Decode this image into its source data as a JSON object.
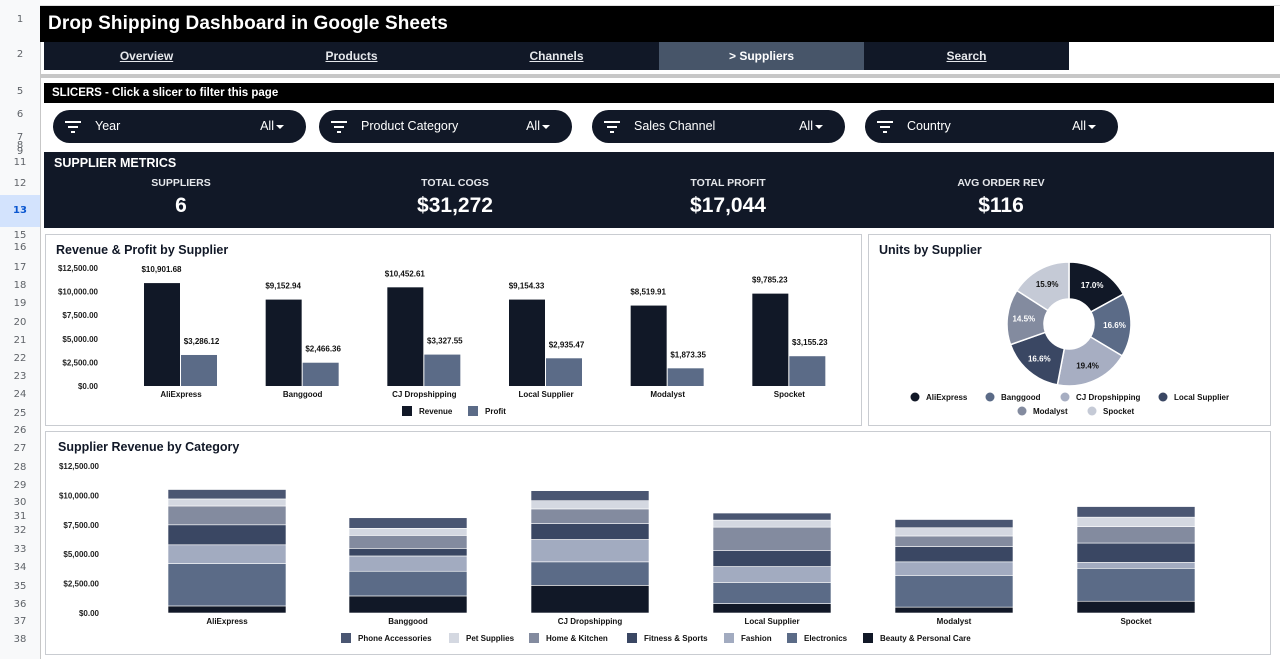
{
  "sheet": {
    "row_numbers": [
      "1",
      "2",
      "5",
      "6",
      "7",
      "8",
      "9",
      "11",
      "12",
      "13",
      "15",
      "16",
      "17",
      "18",
      "19",
      "20",
      "21",
      "22",
      "23",
      "24",
      "25",
      "26",
      "27",
      "28",
      "29",
      "30",
      "31",
      "32",
      "33",
      "34",
      "35",
      "36",
      "37",
      "38"
    ],
    "selected_row": "13"
  },
  "title": "Drop Shipping Dashboard in Google Sheets",
  "nav": {
    "tabs": [
      "Overview",
      "Products",
      "Channels",
      "> Suppliers",
      "Search"
    ],
    "active_index": 3
  },
  "slicers": {
    "header": "SLICERS  -  Click a slicer to filter this page",
    "items": [
      {
        "label": "Year",
        "value": "All"
      },
      {
        "label": "Product Category",
        "value": "All"
      },
      {
        "label": "Sales Channel",
        "value": "All"
      },
      {
        "label": "Country",
        "value": "All"
      }
    ]
  },
  "metrics": {
    "title": "SUPPLIER METRICS",
    "items": [
      {
        "label": "SUPPLIERS",
        "value": "6"
      },
      {
        "label": "TOTAL COGS",
        "value": "$31,272"
      },
      {
        "label": "TOTAL PROFIT",
        "value": "$17,044"
      },
      {
        "label": "AVG ORDER REV",
        "value": "$116"
      }
    ]
  },
  "colors": {
    "navy": "#111827",
    "slate": "#5b6b87",
    "active_tab": "#475569"
  },
  "chart_data": [
    {
      "type": "bar",
      "title": "Revenue & Profit by Supplier",
      "categories": [
        "AliExpress",
        "Banggood",
        "CJ Dropshipping",
        "Local Supplier",
        "Modalyst",
        "Spocket"
      ],
      "series": [
        {
          "name": "Revenue",
          "color": "#111827",
          "values": [
            10901.68,
            9152.94,
            10452.61,
            9154.33,
            8519.91,
            9785.23
          ],
          "labels": [
            "$10,901.68",
            "$9,152.94",
            "$10,452.61",
            "$9,154.33",
            "$8,519.91",
            "$9,785.23"
          ]
        },
        {
          "name": "Profit",
          "color": "#5b6b87",
          "values": [
            3286.12,
            2466.36,
            3327.55,
            2935.47,
            1873.35,
            3155.23
          ],
          "labels": [
            "$3,286.12",
            "$2,466.36",
            "$3,327.55",
            "$2,935.47",
            "$1,873.35",
            "$3,155.23"
          ]
        }
      ],
      "yticks": [
        "$0.00",
        "$2,500.00",
        "$5,000.00",
        "$7,500.00",
        "$10,000.00",
        "$12,500.00"
      ],
      "ylim": [
        0,
        12500
      ],
      "legend": "bottom"
    },
    {
      "type": "pie",
      "title": "Units by Supplier",
      "donut": true,
      "slices": [
        {
          "name": "AliExpress",
          "value": 17.0,
          "label": "17.0%",
          "color": "#111827"
        },
        {
          "name": "Banggood",
          "value": 16.6,
          "label": "16.6%",
          "color": "#5b6b87"
        },
        {
          "name": "CJ Dropshipping",
          "value": 19.4,
          "label": "19.4%",
          "color": "#a7aec2"
        },
        {
          "name": "Local Supplier",
          "value": 16.6,
          "label": "16.6%",
          "color": "#3a4763"
        },
        {
          "name": "Modalyst",
          "value": 14.5,
          "label": "14.5%",
          "color": "#838b9f"
        },
        {
          "name": "Spocket",
          "value": 15.9,
          "label": "15.9%",
          "color": "#c5cad6"
        }
      ],
      "legend": "bottom"
    },
    {
      "type": "bar",
      "stacked": true,
      "title": "Supplier Revenue by Category",
      "categories": [
        "AliExpress",
        "Banggood",
        "CJ Dropshipping",
        "Local Supplier",
        "Modalyst",
        "Spocket"
      ],
      "series": [
        {
          "name": "Beauty & Personal Care",
          "color": "#111827",
          "values": [
            600,
            1450,
            2350,
            800,
            500,
            1000
          ]
        },
        {
          "name": "Electronics",
          "color": "#5b6b87",
          "values": [
            3600,
            2100,
            2000,
            1800,
            2700,
            2800
          ]
        },
        {
          "name": "Fashion",
          "color": "#a2abc0",
          "values": [
            1600,
            1300,
            1900,
            1350,
            1150,
            500
          ]
        },
        {
          "name": "Fitness & Sports",
          "color": "#3a4763",
          "values": [
            1700,
            650,
            1350,
            1350,
            1300,
            1650
          ]
        },
        {
          "name": "Home & Kitchen",
          "color": "#838b9f",
          "values": [
            1600,
            1100,
            1250,
            2000,
            900,
            1400
          ]
        },
        {
          "name": "Pet Supplies",
          "color": "#d4d8e1",
          "values": [
            600,
            600,
            700,
            600,
            700,
            800
          ]
        },
        {
          "name": "Phone Accessories",
          "color": "#4a5672",
          "values": [
            800,
            900,
            850,
            600,
            700,
            900
          ]
        }
      ],
      "legend_order": [
        "Phone Accessories",
        "Pet Supplies",
        "Home & Kitchen",
        "Fitness & Sports",
        "Fashion",
        "Electronics",
        "Beauty & Personal Care"
      ],
      "yticks": [
        "$0.00",
        "$2,500.00",
        "$5,000.00",
        "$7,500.00",
        "$10,000.00",
        "$12,500.00"
      ],
      "ylim": [
        0,
        12500
      ],
      "legend": "bottom"
    }
  ]
}
